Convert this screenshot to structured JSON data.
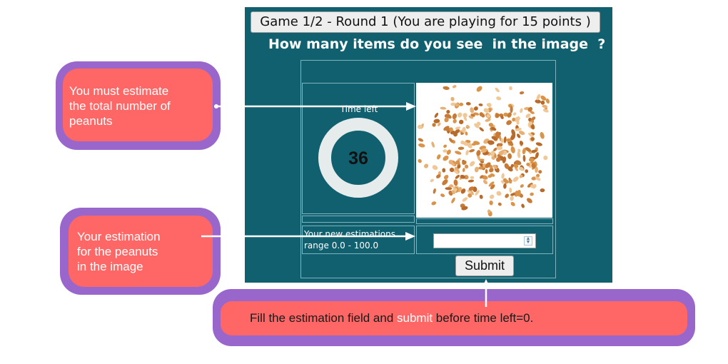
{
  "game": {
    "round_button": "Game 1/2 - Round 1 (You are playing for 15 points )",
    "question": "How many items do you see  in the image  ?",
    "time_label": "Time left",
    "time_left": "36",
    "estimation_label_line1": "Your new estimations",
    "estimation_label_line2": "range 0.0 - 100.0",
    "estimation_value": "",
    "submit_label": "Submit"
  },
  "callouts": {
    "peanuts": [
      "You must estimate",
      "the total number of",
      "peanuts"
    ],
    "estimation": {
      "part1": "Your ",
      "highlight": "estimation",
      "line2": "for the peanuts",
      "line3": "in the image"
    },
    "submit": {
      "part1": "Fill the estimation field and ",
      "highlight": "submit",
      "part2": " before time left=0."
    }
  },
  "colors": {
    "panel": "#106070",
    "callout_fill": "#ff6666",
    "callout_border": "#9966cc",
    "peanut": "#d9944a"
  },
  "icons": {
    "timer": "ring-timer",
    "spinner": "number-spinner-icon"
  }
}
